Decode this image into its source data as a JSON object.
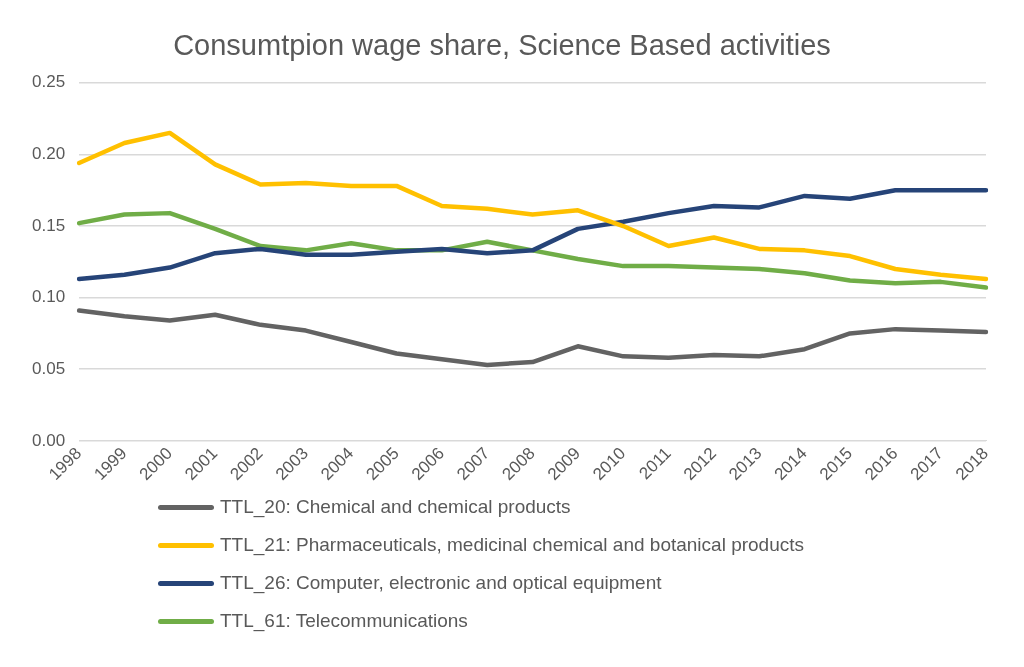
{
  "chart_data": {
    "type": "line",
    "title": "Consumtpion wage share, Science Based activities",
    "categories": [
      "1998",
      "1999",
      "2000",
      "2001",
      "2002",
      "2003",
      "2004",
      "2005",
      "2006",
      "2007",
      "2008",
      "2009",
      "2010",
      "2011",
      "2012",
      "2013",
      "2014",
      "2015",
      "2016",
      "2017",
      "2018"
    ],
    "series": [
      {
        "name": "TTL_20: Chemical and chemical products",
        "color": "#636363",
        "values": [
          0.091,
          0.087,
          0.084,
          0.088,
          0.081,
          0.077,
          0.069,
          0.061,
          0.057,
          0.053,
          0.055,
          0.066,
          0.059,
          0.058,
          0.06,
          0.059,
          0.064,
          0.075,
          0.078,
          0.077,
          0.076
        ]
      },
      {
        "name": "TTL_21: Pharmaceuticals, medicinal chemical and botanical products",
        "color": "#ffc000",
        "values": [
          0.194,
          0.208,
          0.215,
          0.193,
          0.179,
          0.18,
          0.178,
          0.178,
          0.164,
          0.162,
          0.158,
          0.161,
          0.15,
          0.136,
          0.142,
          0.134,
          0.133,
          0.129,
          0.12,
          0.116,
          0.113
        ]
      },
      {
        "name": "TTL_26: Computer, electronic and optical equipment",
        "color": "#264478",
        "values": [
          0.113,
          0.116,
          0.121,
          0.131,
          0.134,
          0.13,
          0.13,
          0.132,
          0.134,
          0.131,
          0.133,
          0.148,
          0.153,
          0.159,
          0.164,
          0.163,
          0.171,
          0.169,
          0.175,
          0.175,
          0.175
        ]
      },
      {
        "name": "TTL_61: Telecommunications",
        "color": "#70ad47",
        "values": [
          0.152,
          0.158,
          0.159,
          0.148,
          0.136,
          0.133,
          0.138,
          0.133,
          0.133,
          0.139,
          0.133,
          0.127,
          0.122,
          0.122,
          0.121,
          0.12,
          0.117,
          0.112,
          0.11,
          0.111,
          0.107
        ]
      }
    ],
    "ylim": [
      0,
      0.25
    ],
    "yticks": [
      {
        "value": 0,
        "label": "0.00"
      },
      {
        "value": 0.05,
        "label": "0.05"
      },
      {
        "value": 0.1,
        "label": "0.10"
      },
      {
        "value": 0.15,
        "label": "0.15"
      },
      {
        "value": 0.2,
        "label": "0.20"
      },
      {
        "value": 0.25,
        "label": "0.25"
      }
    ],
    "grid": "y",
    "legend": "bottom",
    "marker": "none",
    "line_style": "solid"
  }
}
